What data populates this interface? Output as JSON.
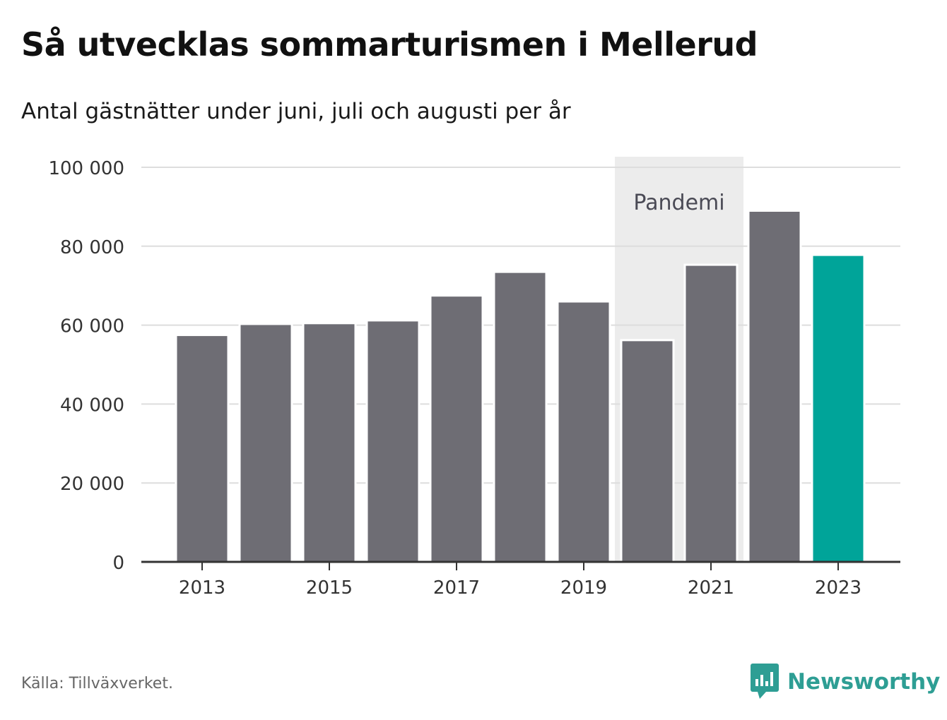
{
  "title": "Så utvecklas sommarturismen i Mellerud",
  "subtitle": "Antal gästnätter under juni, juli och augusti per år",
  "source": "Källa: Tillväxverket.",
  "brand": {
    "name": "Newsworthy",
    "icon": "newsworthy-logo-icon",
    "color": "#2e9e94"
  },
  "colors": {
    "bar": "#6e6d74",
    "highlight": "#00a499",
    "pandemic_band": "#ececec",
    "grid": "#dddddd",
    "axis": "#333333"
  },
  "chart_data": {
    "type": "bar",
    "categories": [
      "2013",
      "2014",
      "2015",
      "2016",
      "2017",
      "2018",
      "2019",
      "2020",
      "2021",
      "2022",
      "2023"
    ],
    "values": [
      57500,
      60300,
      60500,
      61200,
      67500,
      73500,
      66000,
      56200,
      75300,
      89000,
      77800
    ],
    "highlight_category": "2023",
    "x_tick_labels": [
      "2013",
      "2015",
      "2017",
      "2019",
      "2021",
      "2023"
    ],
    "y_ticks": [
      0,
      20000,
      40000,
      60000,
      80000,
      100000
    ],
    "y_tick_labels": [
      "0",
      "20 000",
      "40 000",
      "60 000",
      "80 000",
      "100 000"
    ],
    "ylim": [
      0,
      100000
    ],
    "grid": true,
    "annotations": [
      {
        "text": "Pandemi",
        "span": [
          "2020",
          "2021"
        ]
      }
    ]
  }
}
